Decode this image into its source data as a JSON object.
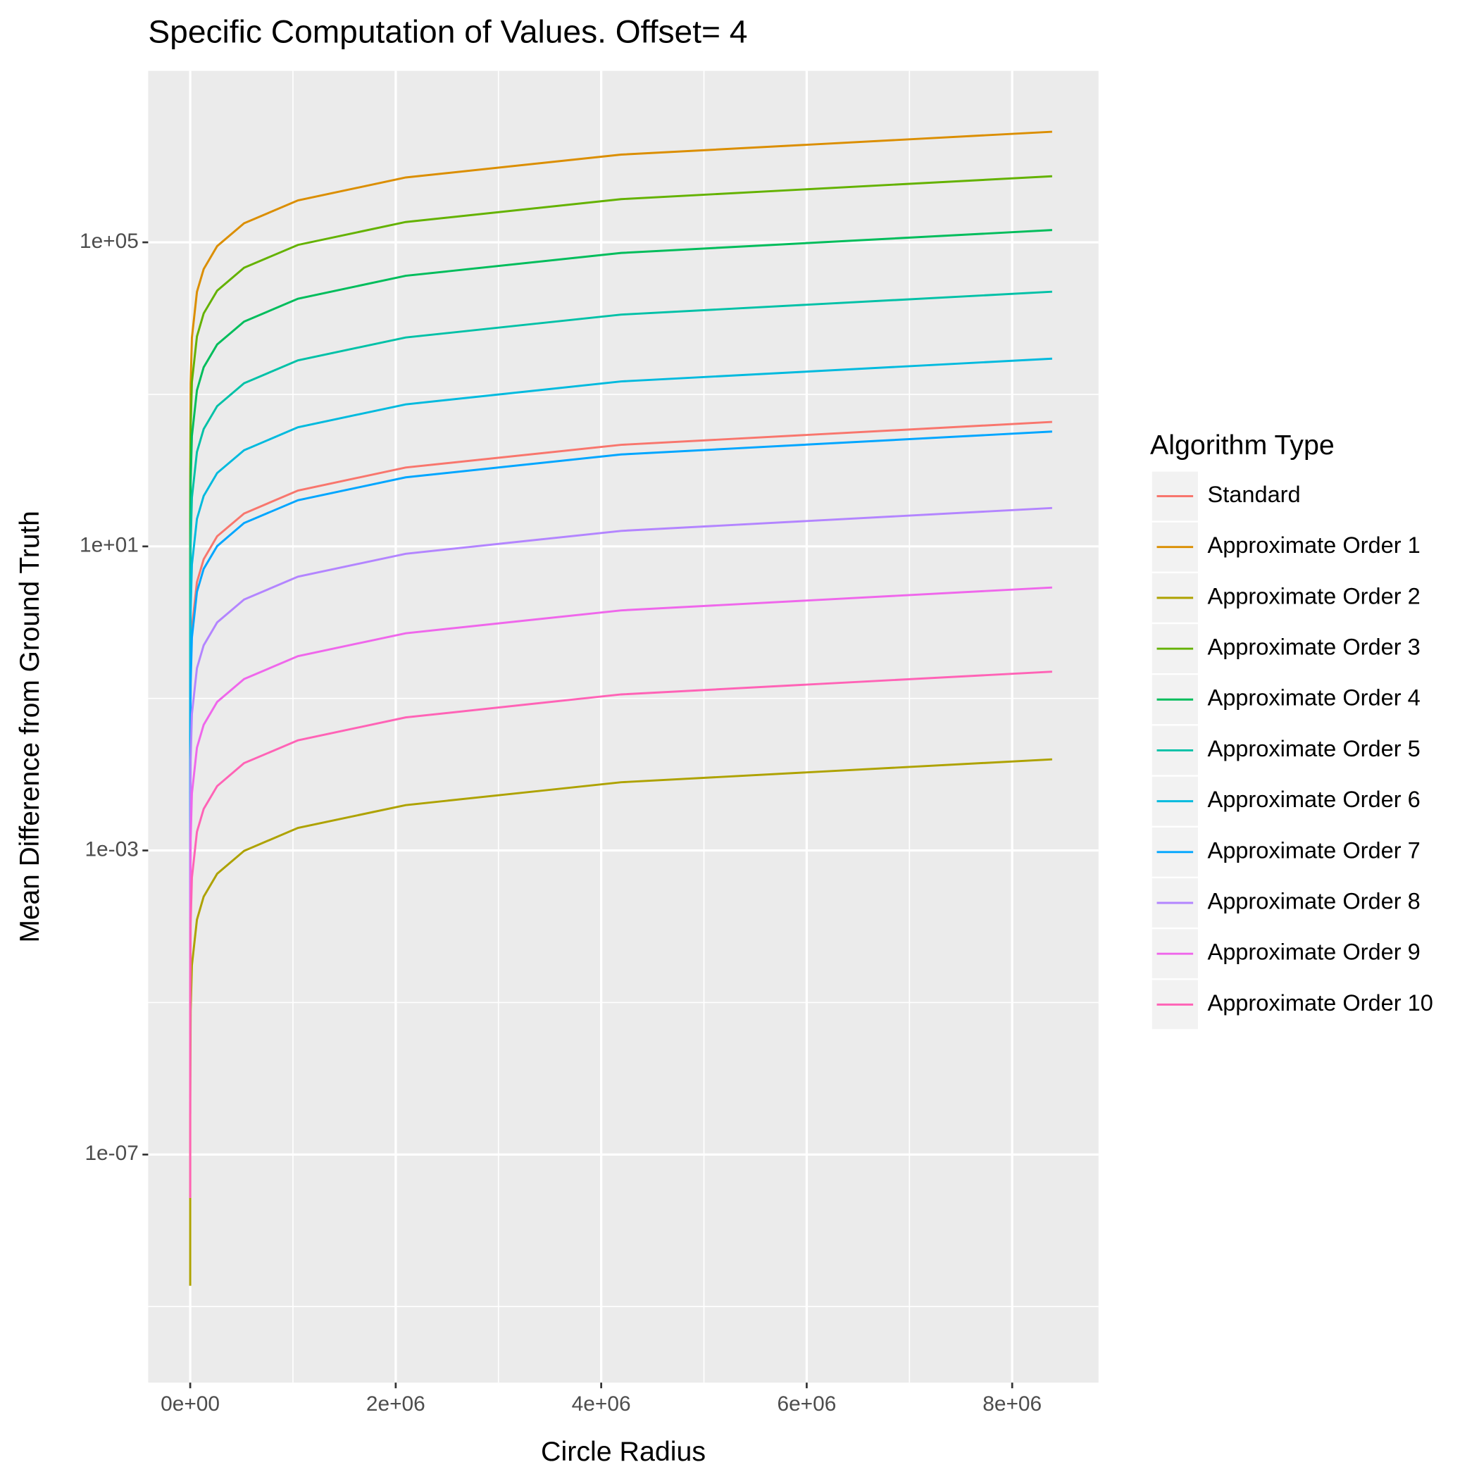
{
  "chart_data": {
    "type": "line",
    "title": "Specific Computation of Values. Offset= 4",
    "x_label": "Circle Radius",
    "y_label": "Mean Difference from Ground Truth",
    "legend_title": "Algorithm Type",
    "legend": "right",
    "log_y": true,
    "grid": true,
    "x": [
      1,
      16,
      256,
      4096,
      16384,
      65536,
      131072,
      262144,
      524288,
      1048576,
      2097152,
      4194304,
      8388608
    ],
    "xlim": [
      -409000,
      8840000
    ],
    "xticks": [
      {
        "value": 0,
        "label": "0e+00"
      },
      {
        "value": 2000000,
        "label": "2e+06"
      },
      {
        "value": 4000000,
        "label": "4e+06"
      },
      {
        "value": 6000000,
        "label": "6e+06"
      },
      {
        "value": 8000000,
        "label": "8e+06"
      }
    ],
    "xminor": [
      1000000,
      3000000,
      5000000,
      7000000
    ],
    "ylim": [
      1e-10,
      18000000
    ],
    "yticks": [
      {
        "value": 100000,
        "label": "1e+05"
      },
      {
        "value": 10,
        "label": "1e+01"
      },
      {
        "value": 0.001,
        "label": "1e-03"
      },
      {
        "value": 1e-07,
        "label": "1e-07"
      }
    ],
    "yminor": [
      1000,
      0.1,
      1e-05,
      1e-09
    ],
    "series": [
      {
        "name": "Standard",
        "color": "#F8766D",
        "values": [
          5.17e-05,
          0.000828,
          0.0132,
          0.212,
          0.847,
          3.39,
          6.78,
          13.6,
          27.1,
          54.3,
          109,
          217,
          434
        ]
      },
      {
        "name": "Approximate Order 1",
        "color": "#DB8E00",
        "values": [
          0.34,
          5.44,
          87,
          1390,
          5570,
          22300,
          44500,
          89100,
          178000,
          356000,
          713000,
          1425000,
          2850000
        ]
      },
      {
        "name": "Approximate Order 2",
        "color": "#AEA200",
        "values": [
          1.88e-09,
          3.01e-08,
          4.82e-07,
          7.71e-06,
          3.09e-05,
          0.000123,
          0.000247,
          0.000494,
          0.000988,
          0.00198,
          0.00395,
          0.0079,
          0.0158
        ]
      },
      {
        "name": "Approximate Order 3",
        "color": "#64B200",
        "values": [
          0.0882,
          1.41,
          22.6,
          361,
          1450,
          5780,
          11600,
          23100,
          46300,
          92500,
          185000,
          370000,
          740000
        ]
      },
      {
        "name": "Approximate Order 4",
        "color": "#00BD5C",
        "values": [
          0.0173,
          0.277,
          4.42,
          70.8,
          283,
          1130,
          2270,
          4530,
          9060,
          18100,
          36300,
          72500,
          145000
        ]
      },
      {
        "name": "Approximate Order 5",
        "color": "#00C1A7",
        "values": [
          0.00267,
          0.0427,
          0.683,
          10.9,
          43.8,
          175,
          350,
          700,
          1400,
          2800,
          5600,
          11200,
          22400
        ]
      },
      {
        "name": "Approximate Order 6",
        "color": "#00BADE",
        "values": [
          0.000352,
          0.00563,
          0.09,
          1.44,
          5.76,
          23,
          46.1,
          92.2,
          184,
          369,
          738,
          1480,
          2950
        ]
      },
      {
        "name": "Approximate Order 7",
        "color": "#00A6FF",
        "values": [
          3.86e-05,
          0.000618,
          0.00989,
          0.158,
          0.633,
          2.53,
          5.06,
          10.1,
          20.3,
          40.5,
          81,
          162,
          324
        ]
      },
      {
        "name": "Approximate Order 8",
        "color": "#B385FF",
        "values": [
          3.81e-06,
          6.1e-05,
          0.000977,
          0.0156,
          0.0625,
          0.25,
          0.5,
          1,
          2,
          4,
          8,
          16,
          32
        ]
      },
      {
        "name": "Approximate Order 9",
        "color": "#EF67EB",
        "values": [
          3.43e-07,
          5.49e-06,
          8.79e-05,
          0.00141,
          0.00563,
          0.0225,
          0.045,
          0.09,
          0.18,
          0.36,
          0.72,
          1.44,
          2.88
        ]
      },
      {
        "name": "Approximate Order 10",
        "color": "#FF63B6",
        "values": [
          2.68e-08,
          4.29e-07,
          6.87e-06,
          0.00011,
          0.000439,
          0.00176,
          0.00352,
          0.00703,
          0.0141,
          0.0281,
          0.0563,
          0.113,
          0.225
        ]
      }
    ]
  }
}
